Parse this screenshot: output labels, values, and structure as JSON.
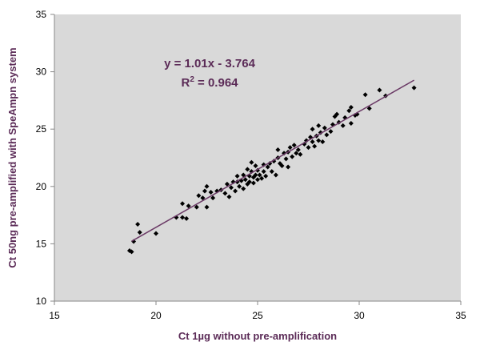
{
  "chart_data": {
    "type": "scatter",
    "title": "",
    "xlabel": "Ct 1µg without pre-amplification",
    "ylabel": "Ct 50ng pre-amplified with SpeAmpn system",
    "xlim": [
      15,
      35
    ],
    "ylim": [
      10,
      35
    ],
    "xticks": [
      15,
      20,
      25,
      30,
      35
    ],
    "yticks": [
      10,
      15,
      20,
      25,
      30,
      35
    ],
    "grid": false,
    "plot_background": "#d9d9d9",
    "marker_color": "#000000",
    "trendline_color": "#6b3a66",
    "annotation_color": "#5b2b57",
    "equation": "y = 1.01x - 3.764",
    "r2_prefix": "R",
    "r2_sup": "2",
    "r2_rest": " = 0.964",
    "trendline": {
      "slope": 1.01,
      "intercept": -3.764,
      "x_range": [
        18.8,
        32.7
      ]
    },
    "series": [
      {
        "points": [
          [
            18.7,
            14.4
          ],
          [
            18.8,
            14.3
          ],
          [
            18.9,
            15.2
          ],
          [
            19.1,
            16.7
          ],
          [
            19.2,
            16.0
          ],
          [
            20.0,
            15.9
          ],
          [
            21.0,
            17.3
          ],
          [
            21.3,
            17.3
          ],
          [
            21.3,
            18.5
          ],
          [
            21.5,
            17.2
          ],
          [
            21.6,
            18.3
          ],
          [
            22.0,
            18.2
          ],
          [
            22.1,
            19.2
          ],
          [
            22.3,
            19.0
          ],
          [
            22.4,
            19.6
          ],
          [
            22.5,
            20.0
          ],
          [
            22.5,
            18.2
          ],
          [
            22.7,
            19.5
          ],
          [
            22.8,
            19.0
          ],
          [
            23.0,
            19.6
          ],
          [
            23.2,
            19.7
          ],
          [
            23.4,
            19.4
          ],
          [
            23.5,
            20.2
          ],
          [
            23.6,
            19.1
          ],
          [
            23.7,
            19.9
          ],
          [
            23.8,
            20.4
          ],
          [
            23.9,
            19.6
          ],
          [
            24.0,
            20.9
          ],
          [
            24.0,
            20.4
          ],
          [
            24.1,
            20.0
          ],
          [
            24.2,
            20.5
          ],
          [
            24.3,
            21.0
          ],
          [
            24.3,
            19.8
          ],
          [
            24.4,
            20.6
          ],
          [
            24.5,
            21.5
          ],
          [
            24.5,
            20.2
          ],
          [
            24.6,
            20.9
          ],
          [
            24.6,
            20.4
          ],
          [
            24.7,
            21.3
          ],
          [
            24.7,
            22.1
          ],
          [
            24.8,
            20.8
          ],
          [
            24.8,
            20.3
          ],
          [
            24.9,
            21.0
          ],
          [
            24.9,
            21.8
          ],
          [
            25.0,
            20.6
          ],
          [
            25.0,
            21.4
          ],
          [
            25.1,
            21.0
          ],
          [
            25.2,
            20.7
          ],
          [
            25.3,
            21.9
          ],
          [
            25.3,
            21.3
          ],
          [
            25.4,
            20.9
          ],
          [
            25.5,
            21.7
          ],
          [
            25.6,
            22.0
          ],
          [
            25.7,
            21.3
          ],
          [
            25.8,
            22.2
          ],
          [
            25.9,
            21.0
          ],
          [
            26.0,
            22.5
          ],
          [
            26.0,
            23.2
          ],
          [
            26.1,
            22.0
          ],
          [
            26.2,
            21.8
          ],
          [
            26.3,
            22.9
          ],
          [
            26.4,
            22.4
          ],
          [
            26.5,
            23.0
          ],
          [
            26.5,
            21.7
          ],
          [
            26.6,
            23.4
          ],
          [
            26.7,
            22.6
          ],
          [
            26.8,
            23.6
          ],
          [
            26.9,
            22.9
          ],
          [
            27.0,
            23.2
          ],
          [
            27.1,
            22.8
          ],
          [
            27.3,
            23.7
          ],
          [
            27.4,
            24.0
          ],
          [
            27.5,
            23.4
          ],
          [
            27.6,
            24.3
          ],
          [
            27.7,
            23.9
          ],
          [
            27.7,
            25.0
          ],
          [
            27.8,
            23.5
          ],
          [
            27.9,
            24.4
          ],
          [
            28.0,
            24.0
          ],
          [
            28.0,
            25.3
          ],
          [
            28.1,
            24.7
          ],
          [
            28.2,
            23.9
          ],
          [
            28.3,
            25.1
          ],
          [
            28.4,
            24.5
          ],
          [
            28.6,
            24.8
          ],
          [
            28.7,
            25.4
          ],
          [
            28.8,
            26.1
          ],
          [
            28.9,
            26.3
          ],
          [
            29.0,
            25.6
          ],
          [
            29.2,
            25.3
          ],
          [
            29.3,
            26.0
          ],
          [
            29.5,
            26.6
          ],
          [
            29.6,
            26.9
          ],
          [
            29.6,
            25.5
          ],
          [
            29.8,
            26.2
          ],
          [
            29.9,
            26.3
          ],
          [
            30.3,
            28.0
          ],
          [
            30.5,
            26.8
          ],
          [
            31.0,
            28.4
          ],
          [
            31.3,
            27.9
          ],
          [
            32.7,
            28.6
          ]
        ]
      }
    ]
  }
}
